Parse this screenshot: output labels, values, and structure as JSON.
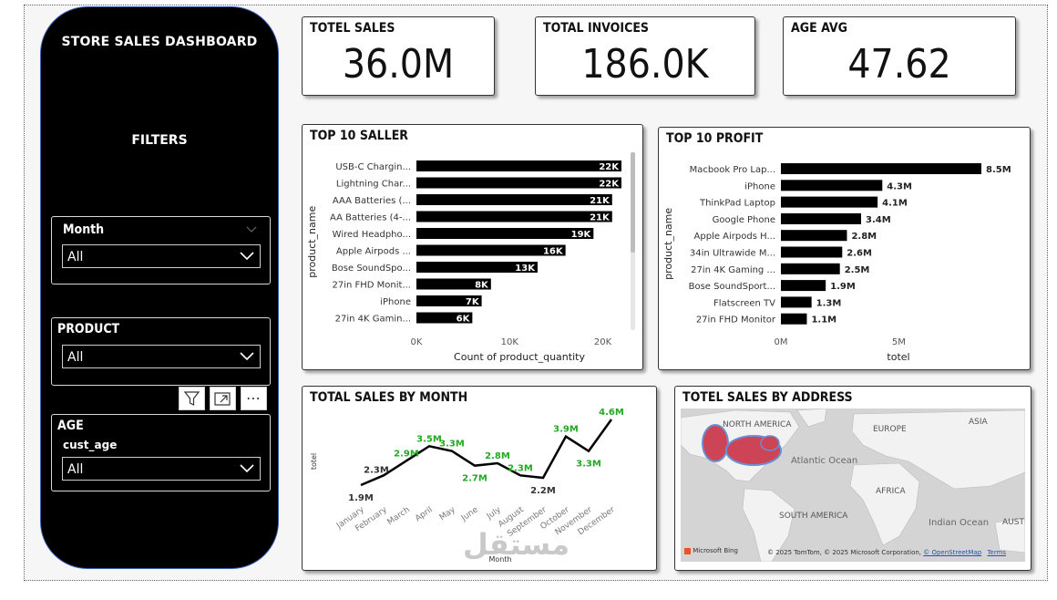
{
  "sidebar": {
    "title": "STORE SALES DASHBOARD",
    "filters_label": "FILTERS",
    "slicers": {
      "month": {
        "title": "Month",
        "value": "All"
      },
      "product": {
        "title": "PRODUCT",
        "value": "All"
      },
      "age": {
        "title": "AGE",
        "field": "cust_age",
        "value": "All"
      }
    }
  },
  "toolbar": {
    "icons": [
      "filter-icon",
      "focus-mode-icon",
      "more-options-icon"
    ],
    "more_glyph": "⋯"
  },
  "kpis": {
    "total_sales": {
      "title": "TOTEL SALES",
      "value": "36.0M"
    },
    "total_invoices": {
      "title": "TOTAL INVOICES",
      "value": "186.0K"
    },
    "age_avg": {
      "title": "AGE AVG",
      "value": "47.62"
    }
  },
  "chart_data": [
    {
      "id": "top10seller",
      "type": "bar",
      "orientation": "horizontal",
      "title": "TOP 10 SALLER",
      "xlabel": "Count of product_quantity",
      "ylabel": "product_name",
      "categories": [
        "USB-C Chargin...",
        "Lightning Char...",
        "AAA Batteries (...",
        "AA Batteries (4-...",
        "Wired Headpho...",
        "Apple Airpods ...",
        "Bose SoundSpo...",
        "27in FHD Monit...",
        "iPhone",
        "27in 4K Gamin..."
      ],
      "values": [
        22,
        22,
        21,
        21,
        19,
        16,
        13,
        8,
        7,
        6
      ],
      "labels": [
        "22K",
        "22K",
        "21K",
        "21K",
        "19K",
        "16K",
        "13K",
        "8K",
        "7K",
        "6K"
      ],
      "ticks": [
        "0K",
        "10K",
        "20K"
      ],
      "tick_values": [
        0,
        10,
        20
      ],
      "xlim": [
        0,
        22
      ]
    },
    {
      "id": "top10profit",
      "type": "bar",
      "orientation": "horizontal",
      "title": "TOP 10 PROFIT",
      "xlabel": "totel",
      "ylabel": "product_name",
      "categories": [
        "Macbook Pro Lap...",
        "iPhone",
        "ThinkPad Laptop",
        "Google Phone",
        "Apple Airpods H...",
        "34in Ultrawide M...",
        "27in 4K Gaming ...",
        "Bose SoundSport...",
        "Flatscreen TV",
        "27in FHD Monitor"
      ],
      "values": [
        8.5,
        4.3,
        4.1,
        3.4,
        2.8,
        2.6,
        2.5,
        1.9,
        1.3,
        1.1
      ],
      "labels": [
        "8.5M",
        "4.3M",
        "4.1M",
        "3.4M",
        "2.8M",
        "2.6M",
        "2.5M",
        "1.9M",
        "1.3M",
        "1.1M"
      ],
      "ticks": [
        "0M",
        "5M"
      ],
      "tick_values": [
        0,
        5
      ],
      "xlim": [
        0,
        8.5
      ]
    },
    {
      "id": "salesbymonth",
      "type": "line",
      "title": "TOTAL SALES BY MONTH",
      "xlabel": "Month",
      "ylabel": "totel",
      "categories": [
        "January",
        "February",
        "March",
        "April",
        "May",
        "June",
        "July",
        "August",
        "September",
        "October",
        "November",
        "December"
      ],
      "values": [
        1.9,
        2.3,
        2.9,
        3.5,
        3.3,
        2.7,
        2.8,
        2.3,
        2.2,
        3.9,
        3.3,
        4.6
      ],
      "labels": [
        "1.9M",
        "2.3M",
        "2.9M",
        "3.5M",
        "3.3M",
        "2.7M",
        "2.8M",
        "2.3M",
        "2.2M",
        "3.9M",
        "3.3M",
        "4.6M"
      ],
      "highlight_color": "#22aa22",
      "ylim": [
        1.9,
        4.6
      ]
    }
  ],
  "map": {
    "title": "TOTEL SALES BY ADDRESS",
    "labels": [
      "NORTH AMERICA",
      "EUROPE",
      "ASIA",
      "Atlantic Ocean",
      "AFRICA",
      "SOUTH AMERICA",
      "Indian Ocean",
      "AUSTI"
    ],
    "attribution": "© 2025 TomTom, © 2025 Microsoft Corporation,",
    "osm_link": "© OpenStreetMap",
    "terms_link": "Terms",
    "logo_text": "Microsoft Bing",
    "bubble_color": "#cc4455"
  },
  "watermark": "مستقل"
}
